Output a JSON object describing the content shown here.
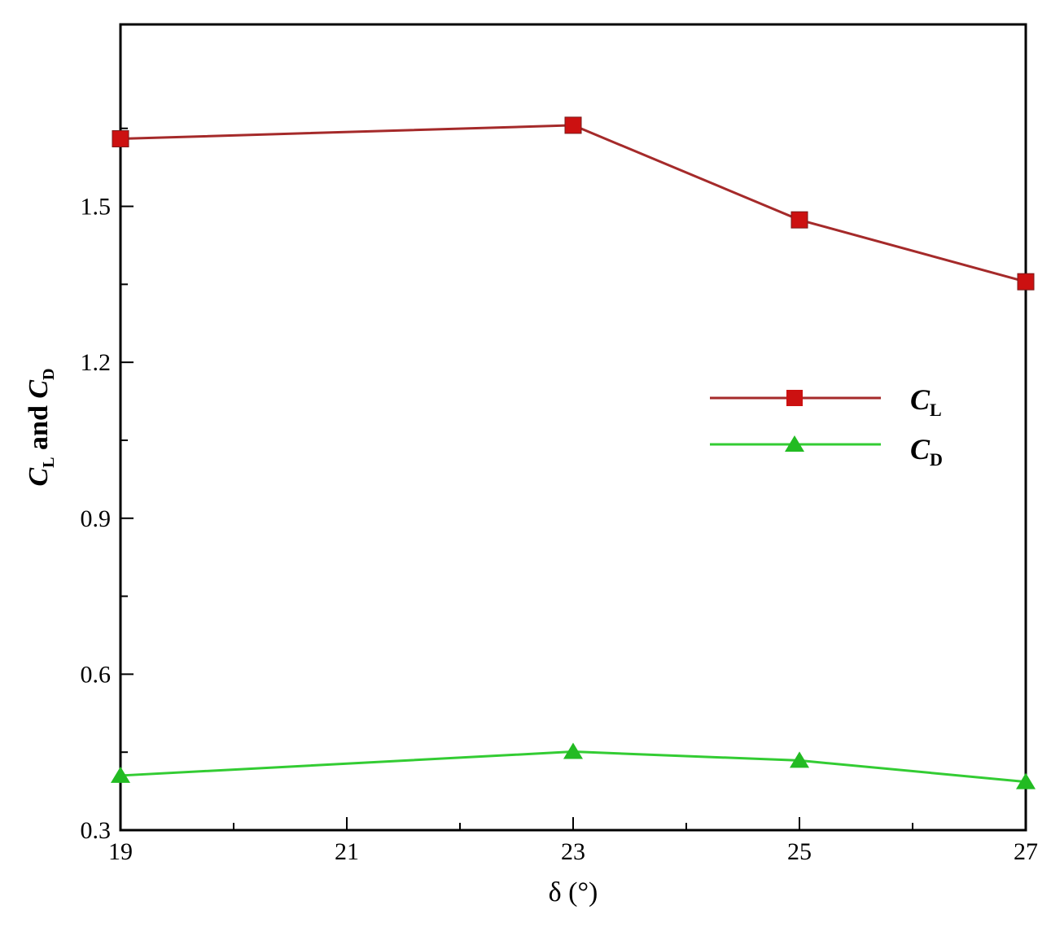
{
  "chart_data": {
    "type": "line",
    "title": "",
    "xlabel": "δ (°)",
    "ylabel": {
      "c": "C",
      "sub_l": "L",
      "and": " and ",
      "sub_d": "D"
    },
    "xlim": [
      19,
      27
    ],
    "ylim": [
      0.3,
      1.85
    ],
    "x_ticks_major": [
      19,
      21,
      23,
      25,
      27
    ],
    "x_ticks_minor": [
      20,
      22,
      24,
      26
    ],
    "x_tick_labels": [
      "19",
      "21",
      "23",
      "25",
      "27"
    ],
    "y_ticks_major": [
      0.3,
      0.6,
      0.9,
      1.2,
      1.5
    ],
    "y_ticks_minor": [
      0.45,
      0.75,
      1.05,
      1.35,
      1.65
    ],
    "y_tick_labels": [
      "0.3",
      "0.6",
      "0.9",
      "1.2",
      "1.5"
    ],
    "grid": false,
    "legend_position": "right-middle",
    "x": [
      19,
      23,
      25,
      27
    ],
    "series": [
      {
        "name": "CL",
        "legend_main": "C",
        "legend_sub": "L",
        "values": [
          1.63,
          1.656,
          1.474,
          1.355
        ],
        "color": "#a52a2a",
        "marker": "square",
        "marker_color": "#cc1111"
      },
      {
        "name": "CD",
        "legend_main": "C",
        "legend_sub": "D",
        "values": [
          0.405,
          0.451,
          0.434,
          0.393
        ],
        "color": "#33cc33",
        "marker": "triangle",
        "marker_color": "#22bb22"
      }
    ]
  }
}
